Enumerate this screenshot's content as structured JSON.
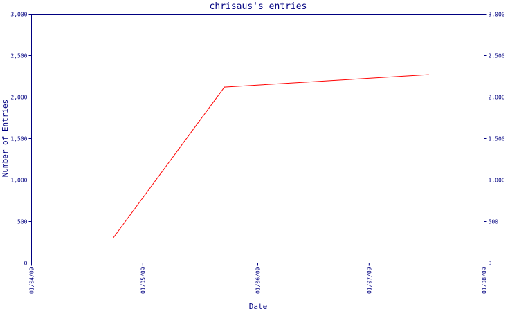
{
  "chart_data": {
    "type": "line",
    "title": "chrisaus's entries",
    "xlabel": "Date",
    "ylabel": "Number of Entries",
    "x_ticks": [
      "01/04/09",
      "01/05/09",
      "01/06/09",
      "01/07/09",
      "01/08/09"
    ],
    "xlim": [
      "2009-04-01",
      "2009-08-01"
    ],
    "y_ticks_left": [
      "0",
      "500",
      "1,000",
      "1,500",
      "2,000",
      "2,500",
      "3,000"
    ],
    "y_ticks_right": [
      "0",
      "500",
      "1,000",
      "1,500",
      "2,000",
      "2,500",
      "3,000"
    ],
    "ylim": [
      0,
      3000
    ],
    "grid": false,
    "colors": {
      "axis": "#000080",
      "line": "#ff0000",
      "background": "#ffffff"
    },
    "series": [
      {
        "points": [
          {
            "x": "2009-04-23",
            "y": 300
          },
          {
            "x": "2009-05-23",
            "y": 2120
          },
          {
            "x": "2009-07-17",
            "y": 2270
          }
        ]
      }
    ]
  }
}
